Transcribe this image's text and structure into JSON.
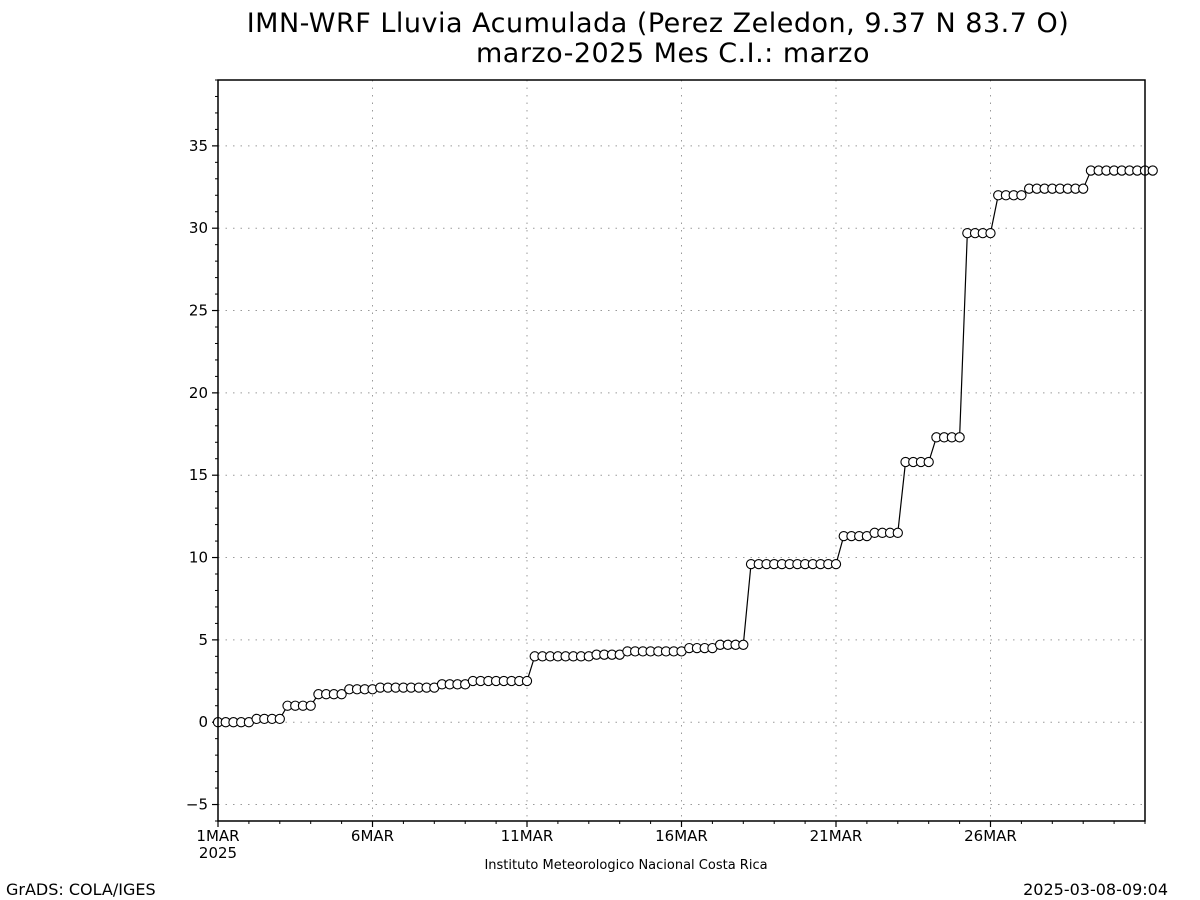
{
  "chart_data": {
    "type": "line",
    "title": "IMN-WRF  Lluvia Acumulada (Perez Zeledon, 9.37  N 83.7  O)",
    "subtitle": "marzo-2025 Mes C.I.: marzo",
    "xlabel": "",
    "ylabel": "",
    "x_range": [
      "1MAR 2025 00Z",
      "31MAR 2025 00Z"
    ],
    "x_step_hours": 6,
    "xlim": [
      0,
      120
    ],
    "ylim": [
      -6,
      39
    ],
    "y_ticks": [
      -5,
      0,
      5,
      10,
      15,
      20,
      25,
      30,
      35
    ],
    "x_ticks": [
      {
        "x": 0,
        "label": "1MAR",
        "sublabel": "2025"
      },
      {
        "x": 20,
        "label": "6MAR",
        "sublabel": ""
      },
      {
        "x": 40,
        "label": "11MAR",
        "sublabel": ""
      },
      {
        "x": 60,
        "label": "16MAR",
        "sublabel": ""
      },
      {
        "x": 80,
        "label": "21MAR",
        "sublabel": ""
      },
      {
        "x": 100,
        "label": "26MAR",
        "sublabel": ""
      }
    ],
    "grid": true,
    "marker": "open-circle",
    "line_color": "#000000",
    "series": [
      {
        "name": "",
        "values": [
          0,
          0,
          0,
          0,
          0,
          0.2,
          0.2,
          0.2,
          0.2,
          1.0,
          1.0,
          1.0,
          1.0,
          1.7,
          1.7,
          1.7,
          1.7,
          2.0,
          2.0,
          2.0,
          2.0,
          2.1,
          2.1,
          2.1,
          2.1,
          2.1,
          2.1,
          2.1,
          2.1,
          2.3,
          2.3,
          2.3,
          2.3,
          2.5,
          2.5,
          2.5,
          2.5,
          2.5,
          2.5,
          2.5,
          2.5,
          4.0,
          4.0,
          4.0,
          4.0,
          4.0,
          4.0,
          4.0,
          4.0,
          4.1,
          4.1,
          4.1,
          4.1,
          4.3,
          4.3,
          4.3,
          4.3,
          4.3,
          4.3,
          4.3,
          4.3,
          4.5,
          4.5,
          4.5,
          4.5,
          4.7,
          4.7,
          4.7,
          4.7,
          9.6,
          9.6,
          9.6,
          9.6,
          9.6,
          9.6,
          9.6,
          9.6,
          9.6,
          9.6,
          9.6,
          9.6,
          11.3,
          11.3,
          11.3,
          11.3,
          11.5,
          11.5,
          11.5,
          11.5,
          15.8,
          15.8,
          15.8,
          15.8,
          17.3,
          17.3,
          17.3,
          17.3,
          29.7,
          29.7,
          29.7,
          29.7,
          32.0,
          32.0,
          32.0,
          32.0,
          32.4,
          32.4,
          32.4,
          32.4,
          32.4,
          32.4,
          32.4,
          32.4,
          33.5,
          33.5,
          33.5,
          33.5,
          33.5,
          33.5,
          33.5,
          33.5,
          33.5
        ]
      }
    ]
  },
  "footer": {
    "institution": "Instituto Meteorologico Nacional Costa Rica",
    "software": "GrADS: COLA/IGES",
    "timestamp": "2025-03-08-09:04"
  }
}
